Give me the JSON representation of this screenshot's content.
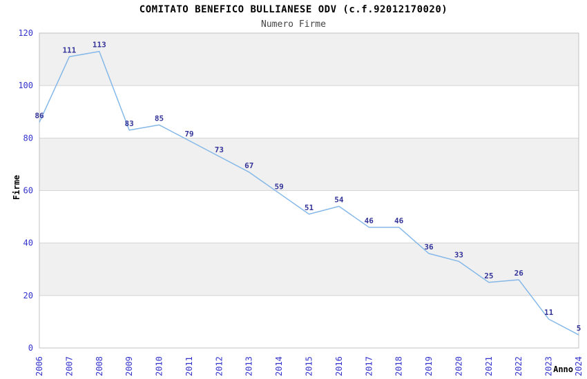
{
  "title": "COMITATO BENEFICO BULLIANESE ODV (c.f.92012170020)",
  "subtitle": "Numero Firme",
  "chart_data": {
    "type": "line",
    "x": [
      "2006",
      "2007",
      "2008",
      "2009",
      "2010",
      "2011",
      "2012",
      "2013",
      "2014",
      "2015",
      "2016",
      "2017",
      "2018",
      "2019",
      "2020",
      "2021",
      "2022",
      "2023",
      "2024"
    ],
    "values": [
      86,
      111,
      113,
      83,
      85,
      79,
      73,
      67,
      59,
      51,
      54,
      46,
      46,
      36,
      33,
      25,
      26,
      11,
      5
    ],
    "title": "COMITATO BENEFICO BULLIANESE ODV (c.f.92012170020)",
    "subtitle": "Numero Firme",
    "xlabel": "Anno",
    "ylabel": "Firme",
    "ylim": [
      0,
      120
    ],
    "ytick_step": 20,
    "yticks": [
      0,
      20,
      40,
      60,
      80,
      100,
      120
    ],
    "grid": "alternating-horizontal-bands",
    "legend": "none",
    "markers": "none",
    "data_labels": true,
    "colors": {
      "line": "#85b8e8",
      "point_label": "#333399",
      "tick_label": "#3333cc",
      "band": "#f0f0f0",
      "gridline": "#d4d4d4",
      "axis": "#c0c0c0",
      "title": "#000000",
      "subtitle": "#444444",
      "axis_title": "#000000",
      "background": "#ffffff"
    }
  }
}
